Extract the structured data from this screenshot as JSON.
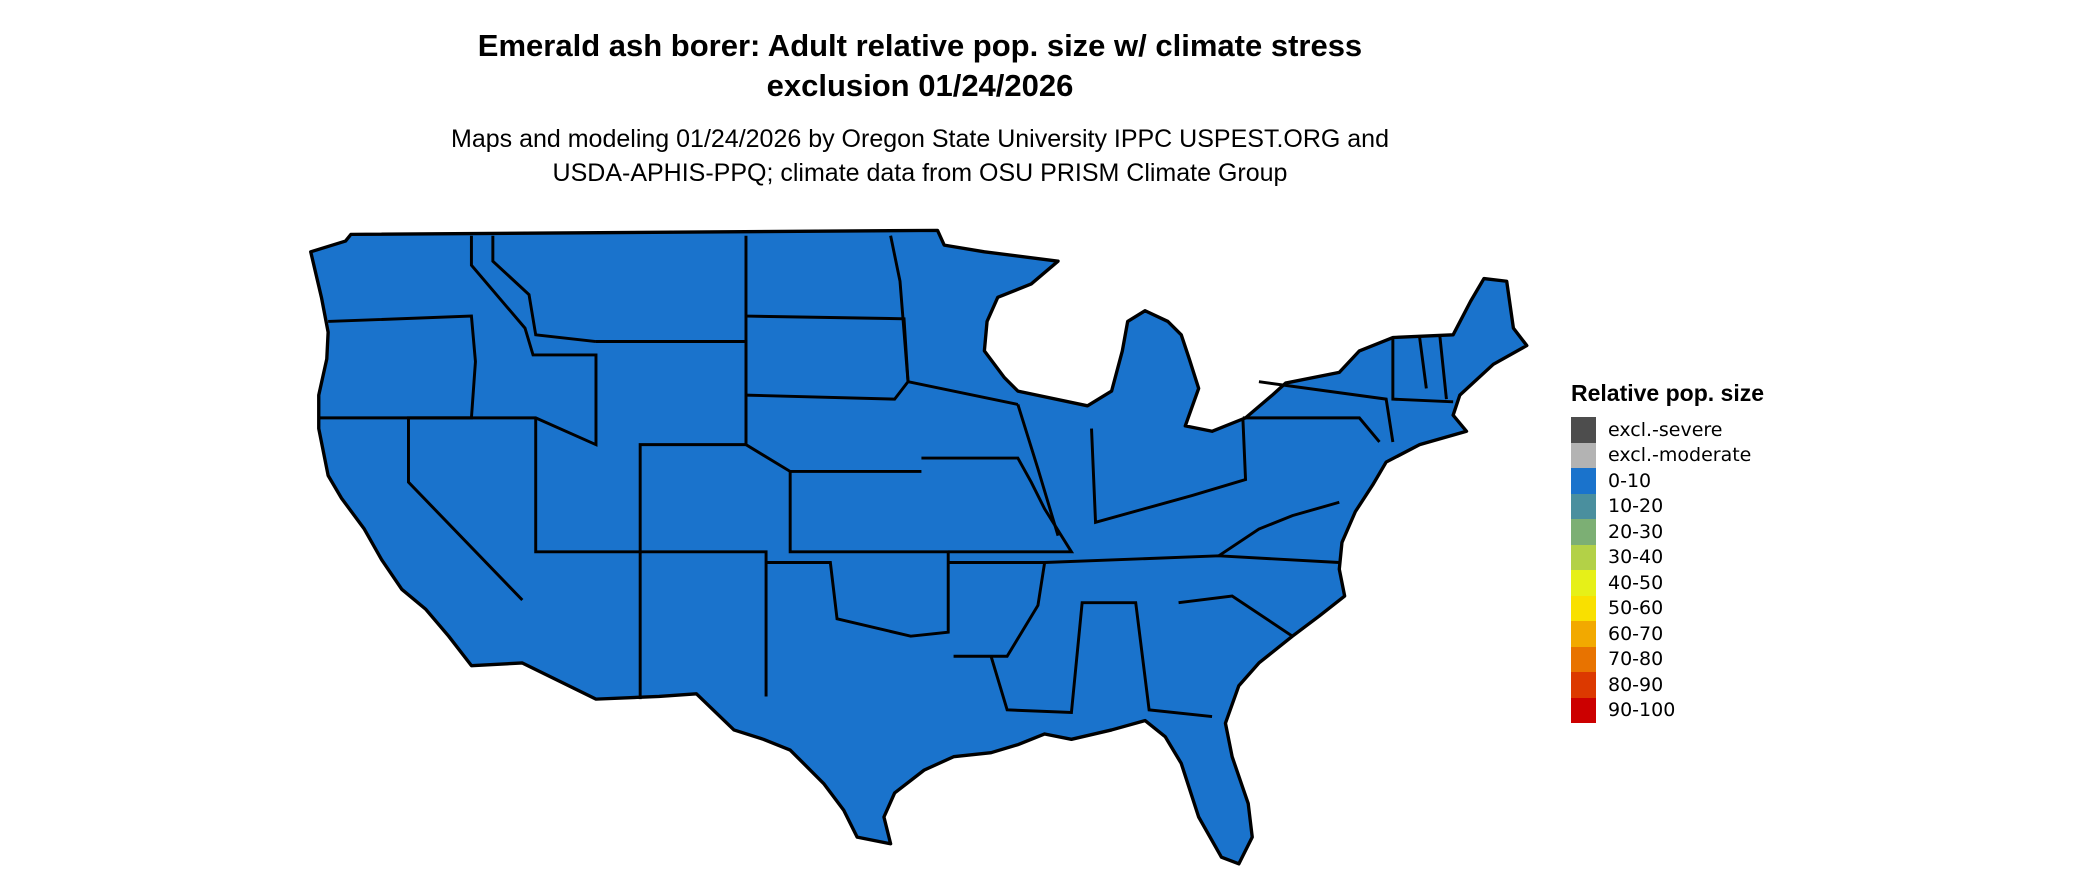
{
  "title": "Emerald ash borer: Adult relative pop. size w/ climate stress exclusion 01/24/2026",
  "title_lines": [
    "Emerald ash borer: Adult relative pop. size w/ climate stress",
    "exclusion 01/24/2026"
  ],
  "subtitle_lines": [
    "Maps and modeling 01/24/2026 by Oregon State University IPPC USPEST.ORG and",
    "USDA-APHIS-PPQ; climate data from OSU PRISM Climate Group"
  ],
  "map": {
    "region": "Conterminous United States",
    "fill_category": "0-10",
    "fill_color": "#1a73cc",
    "border_color": "#000000"
  },
  "legend": {
    "title": "Relative pop. size",
    "items": [
      {
        "label": "excl.-severe",
        "color": "#4d4d4d"
      },
      {
        "label": "excl.-moderate",
        "color": "#b3b3b3"
      },
      {
        "label": "0-10",
        "color": "#1a73cc"
      },
      {
        "label": "10-20",
        "color": "#4a8f9e"
      },
      {
        "label": "20-30",
        "color": "#7caf74"
      },
      {
        "label": "30-40",
        "color": "#b3d147"
      },
      {
        "label": "40-50",
        "color": "#e6f018"
      },
      {
        "label": "50-60",
        "color": "#f9e000"
      },
      {
        "label": "60-70",
        "color": "#f2a900"
      },
      {
        "label": "70-80",
        "color": "#e87300"
      },
      {
        "label": "80-90",
        "color": "#dc3900"
      },
      {
        "label": "90-100",
        "color": "#cc0000"
      }
    ]
  }
}
